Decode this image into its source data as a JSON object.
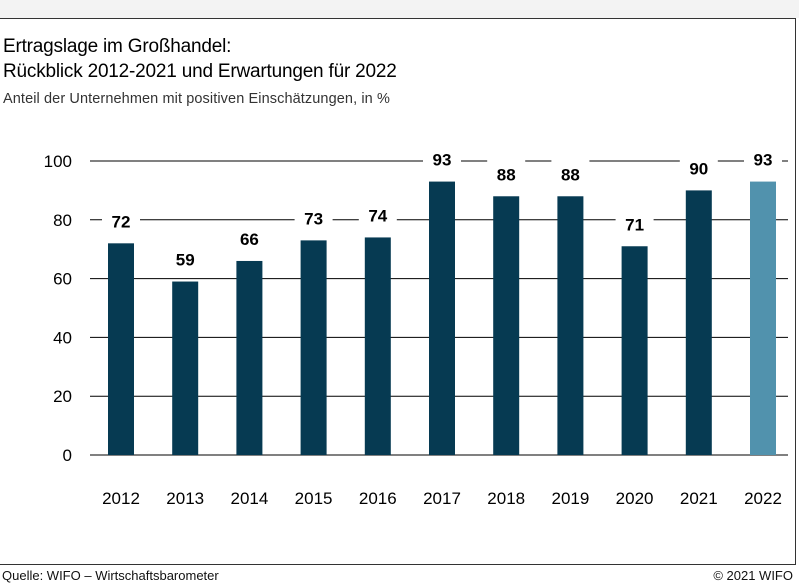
{
  "title_line1": "Ertragslage im Großhandel:",
  "title_line2": "Rückblick 2012-2021 und Erwartungen für 2022",
  "subtitle": "Anteil der Unternehmen mit positiven Einschätzungen, in %",
  "source": "Quelle: WIFO – Wirtschaftsbarometer",
  "copyright": "© 2021 WIFO",
  "colors": {
    "bar": "#063a52",
    "bar_forecast": "#5192ad",
    "grid": "#000000"
  },
  "chart_data": {
    "type": "bar",
    "categories": [
      "2012",
      "2013",
      "2014",
      "2015",
      "2016",
      "2017",
      "2018",
      "2019",
      "2020",
      "2021",
      "2022"
    ],
    "values": [
      72,
      59,
      66,
      73,
      74,
      93,
      88,
      88,
      71,
      90,
      93
    ],
    "yticks": [
      0,
      20,
      40,
      60,
      80,
      100
    ],
    "ylim": [
      0,
      100
    ],
    "forecast_category": "2022",
    "grid": true
  }
}
